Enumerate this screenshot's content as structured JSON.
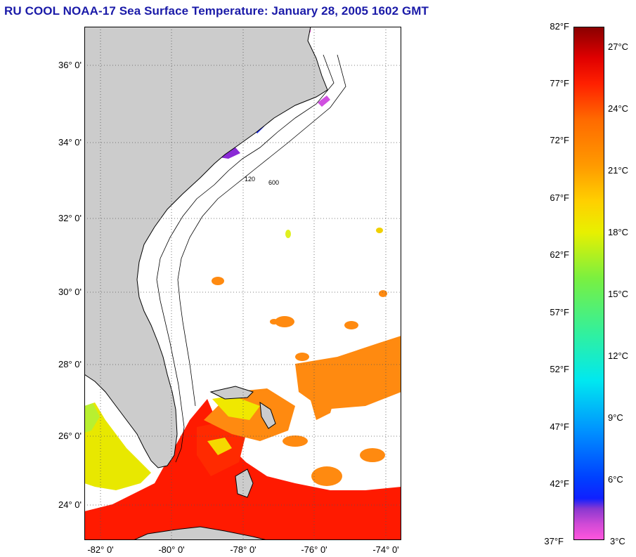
{
  "title": "RU COOL  NOAA-17  Sea Surface Temperature:  January 28, 2005 1602 GMT",
  "map": {
    "lat_labels": [
      "36° 0'",
      "34° 0'",
      "32° 0'",
      "30° 0'",
      "28° 0'",
      "26° 0'",
      "24° 0'"
    ],
    "lon_labels": [
      "-82° 0'",
      "-80° 0'",
      "-78° 0'",
      "-76° 0'",
      "-74° 0'"
    ],
    "contour_labels": [
      "120",
      "600"
    ],
    "colors": {
      "land": "#cccccc",
      "no_data": "#ffffff",
      "warm": "#ff7a00",
      "gulf_stream": "#ff1a00",
      "shelf": "#e6f000"
    }
  },
  "scale": {
    "fahrenheit": [
      "82°F",
      "77°F",
      "72°F",
      "67°F",
      "62°F",
      "57°F",
      "52°F",
      "47°F",
      "42°F",
      "37°F"
    ],
    "celsius": [
      "27°C",
      "24°C",
      "21°C",
      "18°C",
      "15°C",
      "12°C",
      "9°C",
      "6°C",
      "3°C"
    ]
  }
}
